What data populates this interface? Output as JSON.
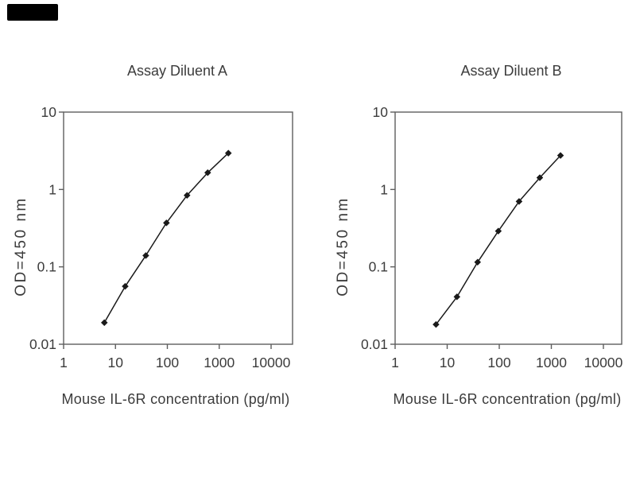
{
  "figure": {
    "background": "#ffffff",
    "watermark_box": {
      "color": "#000000"
    }
  },
  "colors": {
    "axis": "#5e5e5e",
    "text": "#3c3c3c",
    "curve": "#1a1a1a",
    "marker": "#1a1a1a"
  },
  "chart_data": [
    {
      "type": "line",
      "title": "Assay Diluent A",
      "xlabel": "Mouse IL-6R concentration (pg/ml)",
      "ylabel": "OD=450 nm",
      "x_scale": "log",
      "y_scale": "log",
      "xlim": [
        1,
        26000
      ],
      "ylim": [
        0.01,
        10
      ],
      "grid": false,
      "legend": false,
      "marker": "diamond",
      "x_ticks": [
        {
          "value": 1,
          "label": "1"
        },
        {
          "value": 10,
          "label": "10"
        },
        {
          "value": 100,
          "label": "100"
        },
        {
          "value": 1000,
          "label": "1000"
        },
        {
          "value": 10000,
          "label": "10000"
        }
      ],
      "y_ticks": [
        {
          "value": 10,
          "label": "10"
        },
        {
          "value": 1,
          "label": "1"
        },
        {
          "value": 0.1,
          "label": "0.1"
        },
        {
          "value": 0.01,
          "label": "0.01"
        }
      ],
      "series": [
        {
          "x": [
            6.1,
            15.4,
            38.4,
            96,
            240,
            600,
            1500
          ],
          "y": [
            0.019,
            0.056,
            0.14,
            0.37,
            0.84,
            1.65,
            2.95
          ]
        }
      ]
    },
    {
      "type": "line",
      "title": "Assay Diluent B",
      "xlabel": "Mouse IL-6R concentration (pg/ml)",
      "ylabel": "OD=450 nm",
      "x_scale": "log",
      "y_scale": "log",
      "xlim": [
        1,
        22000
      ],
      "ylim": [
        0.01,
        10
      ],
      "grid": false,
      "legend": false,
      "marker": "diamond",
      "x_ticks": [
        {
          "value": 1,
          "label": "1"
        },
        {
          "value": 10,
          "label": "10"
        },
        {
          "value": 100,
          "label": "100"
        },
        {
          "value": 1000,
          "label": "1000"
        },
        {
          "value": 10000,
          "label": "10000"
        }
      ],
      "y_ticks": [
        {
          "value": 10,
          "label": "10"
        },
        {
          "value": 1,
          "label": "1"
        },
        {
          "value": 0.1,
          "label": "0.1"
        },
        {
          "value": 0.01,
          "label": "0.01"
        }
      ],
      "series": [
        {
          "x": [
            6.1,
            15.4,
            38.4,
            96,
            240,
            600,
            1500
          ],
          "y": [
            0.018,
            0.041,
            0.115,
            0.29,
            0.7,
            1.42,
            2.75
          ]
        }
      ]
    }
  ]
}
